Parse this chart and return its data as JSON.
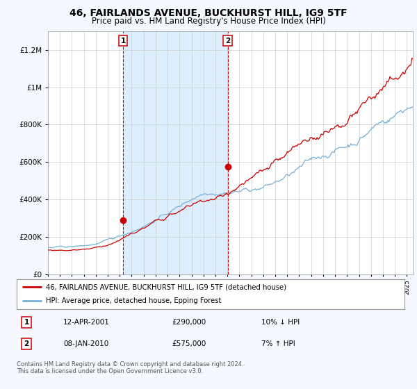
{
  "title": "46, FAIRLANDS AVENUE, BUCKHURST HILL, IG9 5TF",
  "subtitle": "Price paid vs. HM Land Registry's House Price Index (HPI)",
  "title_fontsize": 10,
  "subtitle_fontsize": 8.5,
  "red_line_label": "46, FAIRLANDS AVENUE, BUCKHURST HILL, IG9 5TF (detached house)",
  "blue_line_label": "HPI: Average price, detached house, Epping Forest",
  "sale1_label": "1",
  "sale1_date": "12-APR-2001",
  "sale1_price": "£290,000",
  "sale1_hpi": "10% ↓ HPI",
  "sale1_year": 2001.28,
  "sale1_value": 290000,
  "sale2_label": "2",
  "sale2_date": "08-JAN-2010",
  "sale2_price": "£575,000",
  "sale2_hpi": "7% ↑ HPI",
  "sale2_year": 2010.03,
  "sale2_value": 575000,
  "footnote": "Contains HM Land Registry data © Crown copyright and database right 2024.\nThis data is licensed under the Open Government Licence v3.0.",
  "bg_color": "#f5f8ff",
  "plot_bg_color": "#ffffff",
  "shade_color": "#ddeeff",
  "red_color": "#cc0000",
  "blue_color": "#7ab0d4",
  "ylim_min": 0,
  "ylim_max": 1300000,
  "xlim_min": 1995,
  "xlim_max": 2025.5
}
